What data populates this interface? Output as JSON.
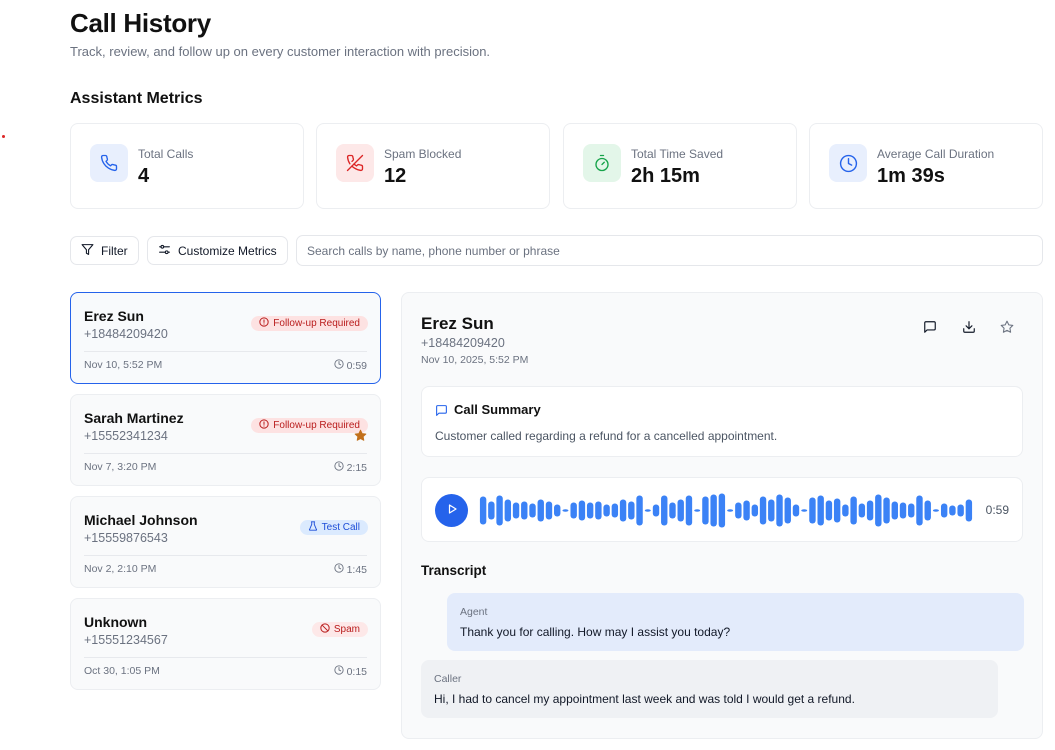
{
  "header": {
    "title": "Call History",
    "subtitle": "Track, review, and follow up on every customer interaction with precision."
  },
  "metrics": {
    "section_title": "Assistant Metrics",
    "items": [
      {
        "label": "Total Calls",
        "value": "4",
        "icon": "phone-icon",
        "color": "#2563eb",
        "bg": "#e8effd"
      },
      {
        "label": "Spam Blocked",
        "value": "12",
        "icon": "phone-off-icon",
        "color": "#dc2626",
        "bg": "#fde8e8"
      },
      {
        "label": "Total Time Saved",
        "value": "2h 15m",
        "icon": "stopwatch-icon",
        "color": "#16a34a",
        "bg": "#e3f6e9"
      },
      {
        "label": "Average Call Duration",
        "value": "1m 39s",
        "icon": "clock-icon",
        "color": "#2563eb",
        "bg": "#e8effd"
      }
    ]
  },
  "toolbar": {
    "filter_label": "Filter",
    "customize_label": "Customize Metrics",
    "search_placeholder": "Search calls by name, phone number or phrase"
  },
  "calls": [
    {
      "name": "Erez Sun",
      "phone": "+18484209420",
      "date": "Nov 10, 5:52 PM",
      "duration": "0:59",
      "badge": "Follow-up Required",
      "badge_type": "follow",
      "starred": false,
      "selected": true
    },
    {
      "name": "Sarah Martinez",
      "phone": "+15552341234",
      "date": "Nov 7, 3:20 PM",
      "duration": "2:15",
      "badge": "Follow-up Required",
      "badge_type": "follow",
      "starred": true,
      "selected": false
    },
    {
      "name": "Michael Johnson",
      "phone": "+15559876543",
      "date": "Nov 2, 2:10 PM",
      "duration": "1:45",
      "badge": "Test Call",
      "badge_type": "test",
      "starred": false,
      "selected": false
    },
    {
      "name": "Unknown",
      "phone": "+15551234567",
      "date": "Oct 30, 1:05 PM",
      "duration": "0:15",
      "badge": "Spam",
      "badge_type": "spam",
      "starred": false,
      "selected": false
    }
  ],
  "detail": {
    "name": "Erez Sun",
    "phone": "+18484209420",
    "datetime": "Nov 10, 2025, 5:52 PM",
    "summary_title": "Call Summary",
    "summary_text": "Customer called regarding a refund for a cancelled appointment.",
    "audio_duration": "0:59",
    "transcript_title": "Transcript",
    "transcript": [
      {
        "speaker": "Agent",
        "text": "Thank you for calling. How may I assist you today?"
      },
      {
        "speaker": "Caller",
        "text": "Hi, I had to cancel my appointment last week and was told I would get a refund."
      }
    ]
  },
  "colors": {
    "accent": "#2563eb",
    "waveform": "#3b82f6",
    "danger": "#dc2626",
    "star": "#c2701b"
  }
}
